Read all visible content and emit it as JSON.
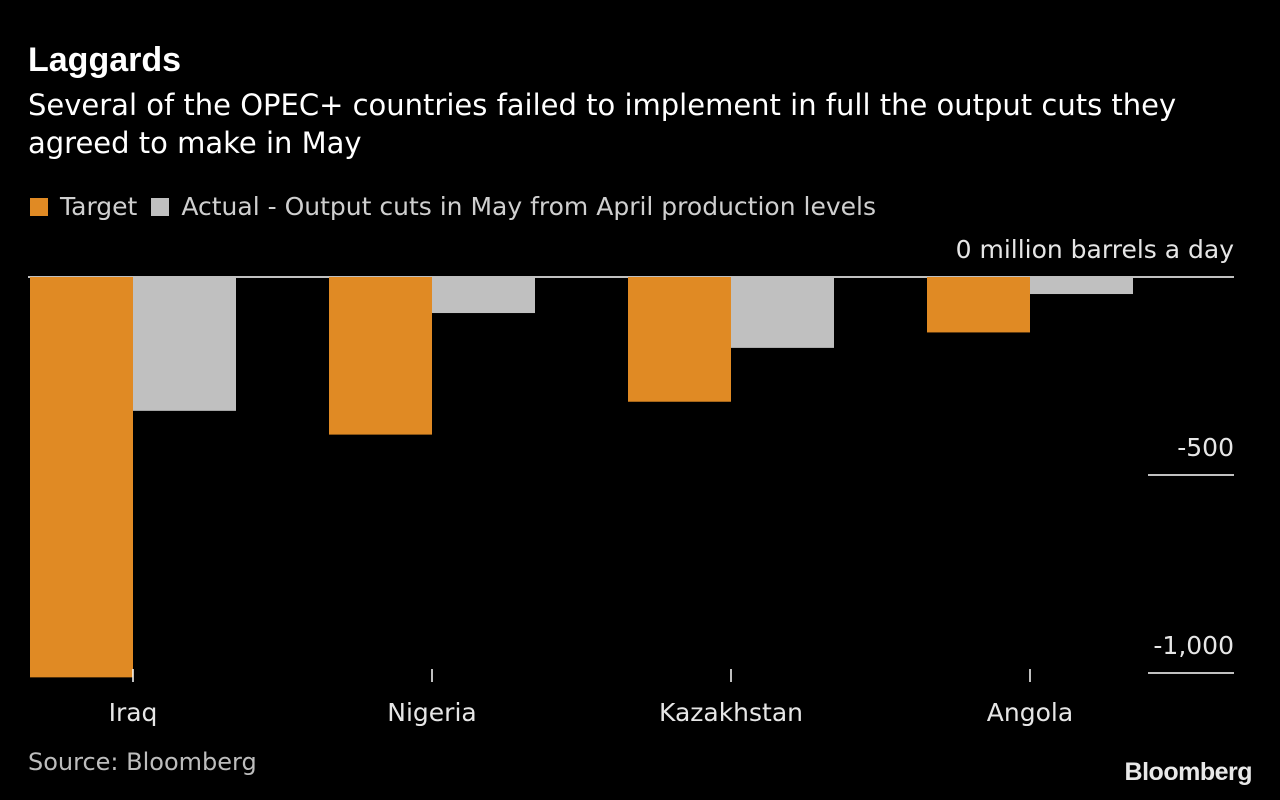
{
  "title": "Laggards",
  "subtitle": "Several of the OPEC+ countries failed to implement in full the output cuts they agreed to make in May",
  "legend": {
    "target_label": "Target",
    "actual_label": "Actual - Output cuts in May from April production levels"
  },
  "colors": {
    "target": "#e08a24",
    "actual": "#c0c0c0",
    "background": "#000000"
  },
  "source": "Source: Bloomberg",
  "logo": "Bloomberg",
  "chart_data": {
    "type": "bar",
    "categories": [
      "Iraq",
      "Nigeria",
      "Kazakhstan",
      "Angola"
    ],
    "series": [
      {
        "name": "Target",
        "values": [
          -1011,
          -398,
          -315,
          -140
        ]
      },
      {
        "name": "Actual - Output cuts in May from April production levels",
        "values": [
          -338,
          -91,
          -179,
          -43
        ]
      }
    ],
    "ylim": [
      -1000,
      0
    ],
    "yticks": [
      {
        "value": 0,
        "label": "0 million barrels a day"
      },
      {
        "value": -500,
        "label": "-500"
      },
      {
        "value": -1000,
        "label": "-1,000"
      }
    ],
    "ylabel": "",
    "xlabel": "",
    "legend_position": "top-left",
    "grid": false
  }
}
